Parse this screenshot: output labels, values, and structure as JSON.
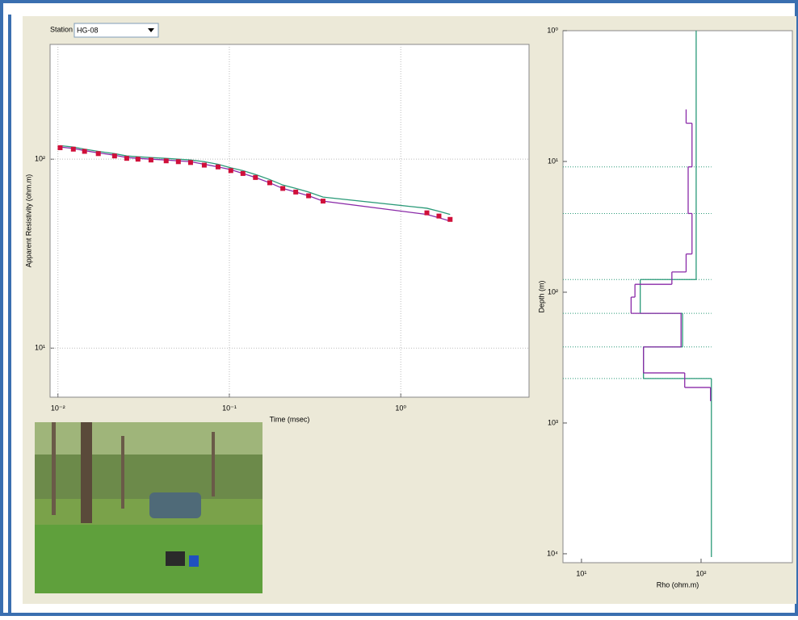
{
  "station_label": "Station",
  "station_value": "HG-08",
  "chart_data": [
    {
      "type": "line",
      "ylabel": "Apparent Resistivity (ohm.m)",
      "xlabel": "Time (msec)",
      "log_x": true,
      "log_y": true,
      "grid": true,
      "xlim": [
        0.009,
        5.6
      ],
      "ylim": [
        5.5,
        405
      ],
      "xticks": [
        {
          "value": 0.01,
          "label": "10⁻²"
        },
        {
          "value": 0.1,
          "label": "10⁻¹"
        },
        {
          "value": 1,
          "label": "10⁰"
        }
      ],
      "yticks": [
        {
          "value": 10,
          "label": "10¹"
        },
        {
          "value": 100,
          "label": "10²"
        }
      ],
      "x": [
        0.0103,
        0.0123,
        0.0143,
        0.0172,
        0.0214,
        0.0252,
        0.0293,
        0.0349,
        0.0428,
        0.0504,
        0.0594,
        0.0714,
        0.0859,
        0.102,
        0.12,
        0.142,
        0.172,
        0.205,
        0.244,
        0.29,
        0.352,
        1.42,
        1.67,
        1.94
      ],
      "series": [
        {
          "color": "#2a9a78",
          "style": "line",
          "values": [
            118,
            116,
            113,
            110,
            107,
            104,
            103,
            102,
            101,
            100,
            99,
            97,
            94,
            90,
            87,
            83,
            78,
            73,
            70,
            67,
            63,
            55,
            53,
            51
          ]
        },
        {
          "color": "#8a2aa8",
          "style": "line",
          "values": [
            116,
            114,
            111,
            108,
            105,
            102,
            101,
            100,
            99,
            98,
            97,
            94,
            91,
            88,
            84,
            80,
            75,
            70,
            67,
            64,
            60,
            51,
            49,
            47
          ]
        },
        {
          "color": "#d0103a",
          "style": "markers",
          "values": [
            115,
            113,
            110,
            107,
            104,
            101,
            100,
            99,
            98,
            97,
            96,
            93,
            91,
            87,
            84,
            80,
            75,
            70,
            67,
            64,
            60,
            52,
            50,
            48
          ]
        }
      ]
    },
    {
      "type": "step",
      "ylabel": "Depth (m)",
      "xlabel": "Rho (ohm.m)",
      "log_x": true,
      "log_y": true,
      "reverse_y": true,
      "xlim": [
        7,
        580
      ],
      "ylim": [
        1,
        11700
      ],
      "xticks": [
        {
          "value": 10,
          "label": "10¹"
        },
        {
          "value": 100,
          "label": "10²"
        }
      ],
      "yticks": [
        {
          "value": 1,
          "label": "10⁰"
        },
        {
          "value": 10,
          "label": "10¹"
        },
        {
          "value": 100,
          "label": "10²"
        },
        {
          "value": 1000,
          "label": "10³"
        },
        {
          "value": 10000,
          "label": "10⁴"
        }
      ],
      "boundary_lines": [
        11,
        25,
        80,
        145,
        262,
        457
      ],
      "series": [
        {
          "color": "#2a9a78",
          "depths": [
            1,
            80,
            145,
            262,
            457,
            10600
          ],
          "values": [
            91,
            31,
            70,
            33,
            122
          ]
        },
        {
          "color": "#8a2aa8",
          "depths": [
            4.0,
            5.1,
            11,
            25,
            51,
            70,
            87,
            109,
            145,
            262,
            414,
            535,
            681
          ],
          "values": [
            75,
            84,
            78,
            84,
            75,
            57,
            28,
            26,
            68,
            33,
            73,
            120
          ]
        }
      ]
    }
  ]
}
